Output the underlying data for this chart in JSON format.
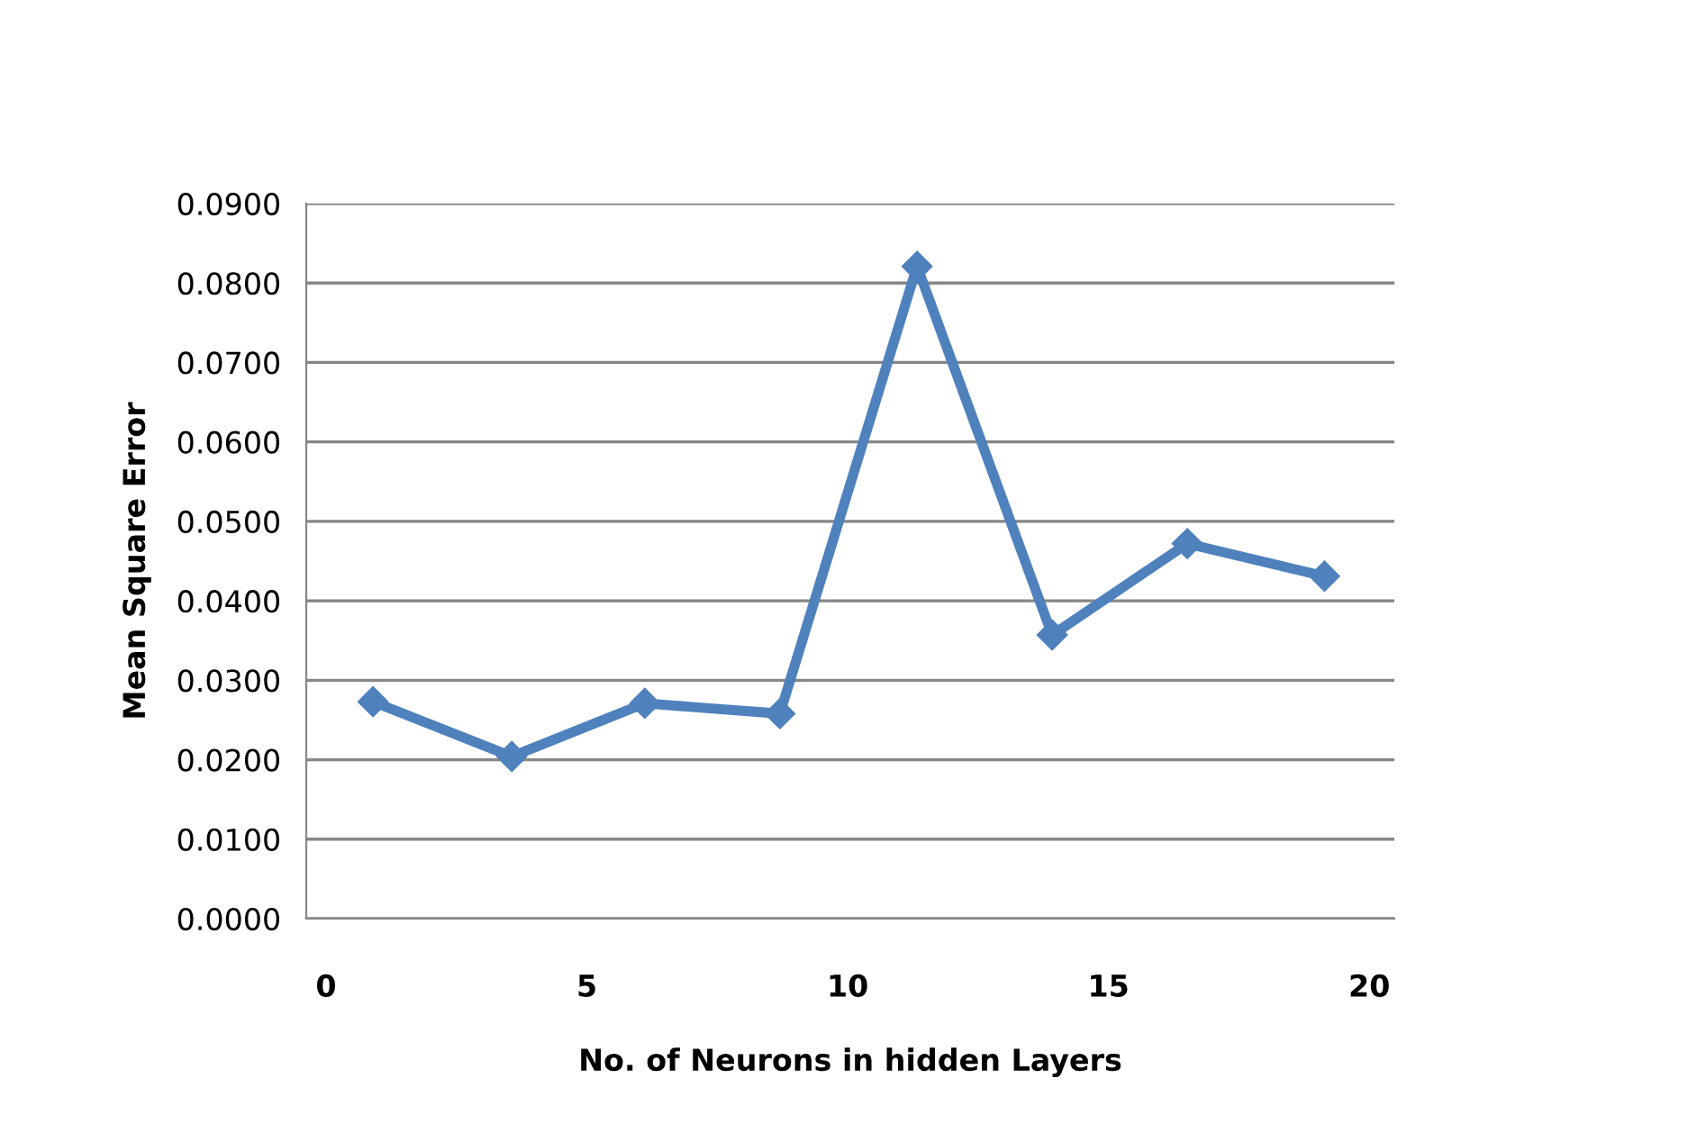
{
  "chart_data": {
    "type": "line",
    "xlabel": "No. of Neurons in hidden Layers",
    "ylabel": "Mean Square Error",
    "x": [
      0.9,
      3.56,
      6.11,
      8.7,
      11.33,
      13.92,
      16.51,
      19.14
    ],
    "series": [
      {
        "color": "#4f81bd",
        "values": [
          0.0273,
          0.0204,
          0.0271,
          0.0258,
          0.0821,
          0.0357,
          0.0472,
          0.0431
        ]
      }
    ],
    "xlim": [
      -0.38,
      20.48
    ],
    "xticks": [
      0,
      5,
      10,
      15,
      20
    ],
    "ylim": [
      0,
      0.09
    ],
    "yticks": [
      {
        "value": 0,
        "label": "0.0000"
      },
      {
        "value": 0.01,
        "label": "0.0100"
      },
      {
        "value": 0.02,
        "label": "0.0200"
      },
      {
        "value": 0.03,
        "label": "0.0300"
      },
      {
        "value": 0.04,
        "label": "0.0400"
      },
      {
        "value": 0.05,
        "label": "0.0500"
      },
      {
        "value": 0.06,
        "label": "0.0600"
      },
      {
        "value": 0.07,
        "label": "0.0700"
      },
      {
        "value": 0.08,
        "label": "0.0800"
      },
      {
        "value": 0.09,
        "label": "0.0900"
      }
    ],
    "grid": "y",
    "marker": "diamond",
    "line_style": "solid"
  }
}
